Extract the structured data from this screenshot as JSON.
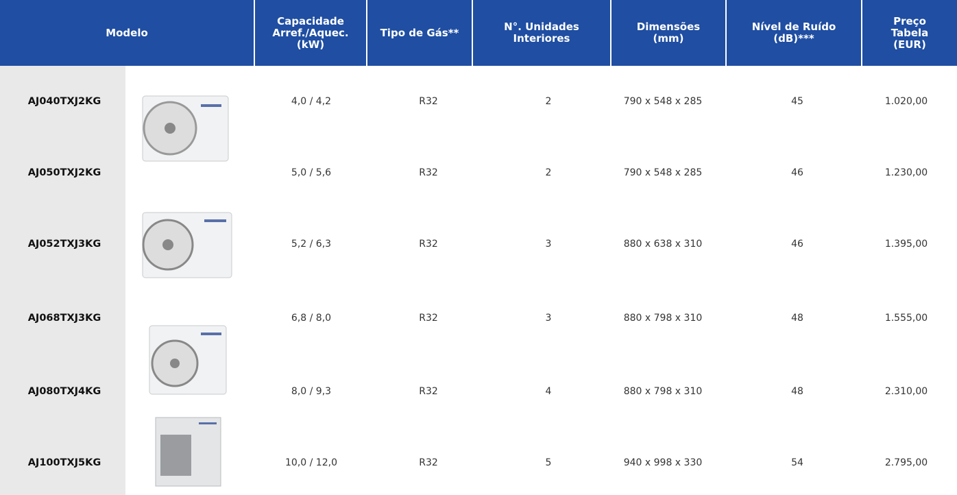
{
  "table": {
    "header": [
      [
        "Modelo"
      ],
      [
        "Capacidade",
        "Arref./Aquec.",
        "(kW)"
      ],
      [
        "Tipo de Gás**"
      ],
      [
        "N°. Unidades",
        "Interiores"
      ],
      [
        "Dimensões",
        "(mm)"
      ],
      [
        "Nível de Ruído",
        "(dB)***"
      ],
      [
        "Preço",
        "Tabela",
        "(EUR)"
      ]
    ],
    "rows": [
      [
        "AJ040TXJ2KG",
        "4,0 / 4,2",
        "R32",
        "2",
        "790 x 548 x 285",
        "45",
        "1.020,00"
      ],
      [
        "AJ050TXJ2KG",
        "5,0 / 5,6",
        "R32",
        "2",
        "790 x 548 x 285",
        "46",
        "1.230,00"
      ],
      [
        "AJ052TXJ3KG",
        "5,2 / 6,3",
        "R32",
        "3",
        "880 x 638 x 310",
        "46",
        "1.395,00"
      ],
      [
        "AJ068TXJ3KG",
        "6,8 / 8,0",
        "R32",
        "3",
        "880 x 798 x 310",
        "48",
        "1.555,00"
      ],
      [
        "AJ080TXJ4KG",
        "8,0 / 9,3",
        "R32",
        "4",
        "880 x 798 x 310",
        "48",
        "2.310,00"
      ],
      [
        "AJ100TXJ5KG",
        "10,0 / 12,0",
        "R32",
        "5",
        "940 x 998 x 330",
        "54",
        "2.795,00"
      ]
    ]
  }
}
